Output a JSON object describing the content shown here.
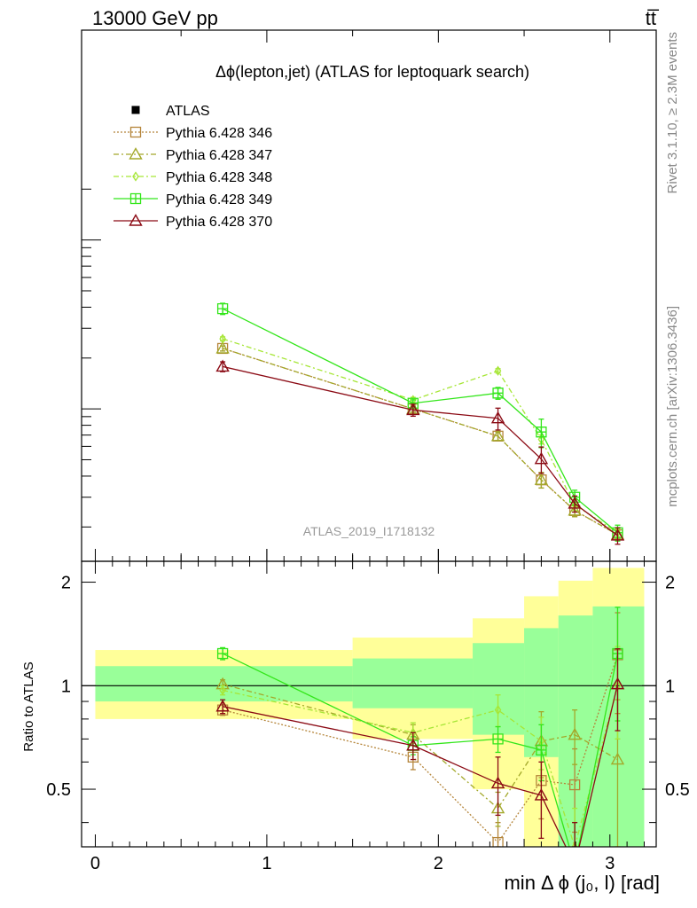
{
  "header": {
    "left": "13000 GeV pp",
    "right": "tt̅"
  },
  "side_labels": {
    "rivet": "Rivet 3.1.10, ≥ 2.3M events",
    "url": "mcplots.cern.ch [arXiv:1306.3436]"
  },
  "colors": {
    "atlas": "#000000",
    "p346": "#b5853a",
    "p347": "#a3a82a",
    "p348": "#a6e636",
    "p349": "#33e61a",
    "p370": "#8b0a14",
    "band_outer": "#ffff99",
    "band_inner": "#99ff99"
  },
  "chart_data": {
    "type": "line",
    "title": "Δϕ(lepton,jet) (ATLAS for leptoquark search)",
    "watermark": "ATLAS_2019_I1718132",
    "xlabel": "min Δ ϕ (j₀, l) [rad]",
    "xlim": [
      -0.08,
      3.27
    ],
    "main_panel": {
      "y_scale": "log",
      "tick_labels_shown": false,
      "series": [
        {
          "key": "p346",
          "name": "Pythia 6.428 346",
          "style": "dotted",
          "marker": "square",
          "x": [
            0.7425,
            1.8525,
            2.3475,
            2.6,
            2.795,
            3.045
          ],
          "y": [
            2.28,
            1.0,
            0.69,
            0.38,
            0.25,
            0.18
          ],
          "yerr": [
            0.08,
            0.04,
            0.04,
            0.04,
            0.02,
            0.01
          ]
        },
        {
          "key": "p347",
          "name": "Pythia 6.428 347",
          "style": "dashdot",
          "marker": "triangle",
          "x": [
            0.7425,
            1.8525,
            2.3475,
            2.6,
            2.795,
            3.045
          ],
          "y": [
            2.28,
            1.0,
            0.69,
            0.38,
            0.25,
            0.18
          ],
          "yerr": [
            0.08,
            0.04,
            0.04,
            0.04,
            0.02,
            0.01
          ]
        },
        {
          "key": "p348",
          "name": "Pythia 6.428 348",
          "style": "dashdot",
          "marker": "diamond",
          "x": [
            0.7425,
            1.8525,
            2.3475,
            2.6,
            2.795,
            3.045
          ],
          "y": [
            2.6,
            1.13,
            1.68,
            0.66,
            0.27,
            0.185
          ],
          "yerr": [
            0.07,
            0.04,
            0.05,
            0.04,
            0.02,
            0.01
          ]
        },
        {
          "key": "p349",
          "name": "Pythia 6.428 349",
          "style": "solid",
          "marker": "square-cross",
          "x": [
            0.7425,
            1.8525,
            2.3475,
            2.6,
            2.795,
            3.045
          ],
          "y": [
            3.92,
            1.08,
            1.24,
            0.73,
            0.3,
            0.185
          ],
          "yerr": [
            0.3,
            0.05,
            0.1,
            0.14,
            0.03,
            0.02
          ]
        },
        {
          "key": "p370",
          "name": "Pythia 6.428 370",
          "style": "solid",
          "marker": "triangle",
          "x": [
            0.7425,
            1.8525,
            2.3475,
            2.6,
            2.795,
            3.045
          ],
          "y": [
            1.78,
            0.985,
            0.88,
            0.505,
            0.275,
            0.178
          ],
          "yerr": [
            0.12,
            0.08,
            0.13,
            0.09,
            0.03,
            0.02
          ]
        }
      ]
    },
    "ratio_panel": {
      "ylabel": "Ratio to ATLAS",
      "y_scale": "log",
      "ylim": [
        0.34,
        2.3
      ],
      "yticks": [
        0.5,
        1,
        2
      ],
      "ytick_labels": [
        "0.5",
        "1",
        "2"
      ],
      "xticks": [
        0,
        1,
        2,
        3
      ],
      "xtick_labels": [
        "0",
        "1",
        "2",
        "3"
      ],
      "reference": 1,
      "bands": {
        "edges": [
          0.0,
          1.5,
          2.2,
          2.5,
          2.7,
          2.9,
          3.2
        ],
        "outer_lo": [
          0.8,
          0.7,
          0.5,
          0.34,
          0.34,
          0.34
        ],
        "outer_hi": [
          1.27,
          1.38,
          1.57,
          1.82,
          2.02,
          2.2
        ],
        "inner_lo": [
          0.9,
          0.86,
          0.72,
          0.62,
          0.34,
          0.34
        ],
        "inner_hi": [
          1.14,
          1.2,
          1.33,
          1.47,
          1.6,
          1.7
        ]
      },
      "series": [
        {
          "key": "p346",
          "x": [
            0.7425,
            1.8525,
            2.3475,
            2.6,
            2.795,
            3.045
          ],
          "y": [
            0.85,
            0.62,
            0.35,
            0.53,
            0.515,
            1.23
          ],
          "yerr": [
            0.03,
            0.05,
            0.05,
            0.12,
            0.14,
            0.4
          ]
        },
        {
          "key": "p347",
          "x": [
            0.7425,
            1.8525,
            2.3475,
            2.6,
            2.795,
            3.045
          ],
          "y": [
            1.01,
            0.72,
            0.44,
            0.69,
            0.72,
            0.61
          ],
          "yerr": [
            0.03,
            0.05,
            0.05,
            0.15,
            0.13,
            0.3
          ]
        },
        {
          "key": "p348",
          "x": [
            0.7425,
            1.8525,
            2.3475,
            2.6,
            2.795,
            3.045
          ],
          "y": [
            0.97,
            0.73,
            0.85,
            0.69,
            0.34,
            1.0
          ],
          "yerr": [
            0.03,
            0.05,
            0.09,
            0.12,
            0.1,
            0.3
          ]
        },
        {
          "key": "p349",
          "x": [
            0.7425,
            1.8525,
            2.3475,
            2.6,
            2.795,
            3.045
          ],
          "y": [
            1.24,
            0.67,
            0.7,
            0.65,
            0.3,
            1.24
          ],
          "yerr": [
            0.05,
            0.04,
            0.06,
            0.12,
            0.1,
            0.45
          ]
        },
        {
          "key": "p370",
          "x": [
            0.7425,
            1.8525,
            2.3475,
            2.6,
            2.795,
            3.045
          ],
          "y": [
            0.87,
            0.67,
            0.52,
            0.48,
            0.3,
            1.01
          ],
          "yerr": [
            0.04,
            0.06,
            0.1,
            0.12,
            0.1,
            0.27
          ]
        }
      ]
    }
  }
}
